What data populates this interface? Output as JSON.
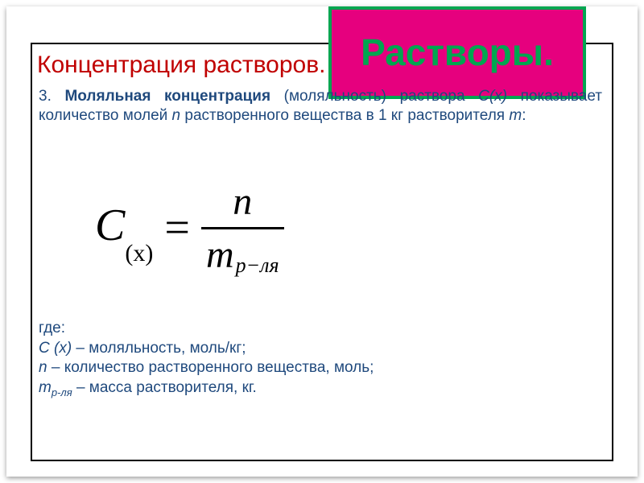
{
  "badge": {
    "text": "Растворы.",
    "bg": "#e6007e",
    "border": "#00a650",
    "fg": "#00a650"
  },
  "title": {
    "text": "Концентрация растворов.",
    "color": "#c00000"
  },
  "def": {
    "num": "3.",
    "term": "Моляльная концентрация",
    "after_term": " (моляльность) раствора ",
    "sym1": "C(x)",
    "mid": " показывает количество молей ",
    "sym2": "n",
    "mid2": " растворенного вещества в 1 кг растворителя ",
    "sym3": "m",
    "end": ":",
    "color": "#1f497d"
  },
  "formula": {
    "C": "C",
    "Csub": "(x)",
    "eq": "=",
    "num": "n",
    "den_m": "m",
    "den_sub": "р−ля"
  },
  "where": {
    "w": "где:",
    "l1a": "C (x)",
    "l1b": " – моляльность, моль/кг;",
    "l2a": "n",
    "l2b": " – количество растворенного вещества, моль;",
    "l3a": "m",
    "l3s": "р-ля",
    "l3b": " – масса растворителя, кг."
  }
}
